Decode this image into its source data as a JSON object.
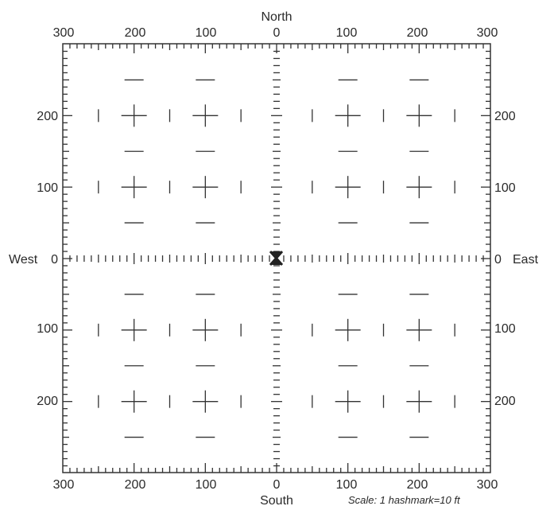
{
  "directions": {
    "north": "North",
    "south": "South",
    "west": "West",
    "east": "East"
  },
  "scale_note": "Scale:  1 hashmark=10 ft",
  "center_marker": "X",
  "top_ticks": [
    "300",
    "200",
    "100",
    "0",
    "100",
    "200",
    "300"
  ],
  "bottom_ticks": [
    "300",
    "200",
    "100",
    "0",
    "100",
    "200",
    "300"
  ],
  "left_ticks": [
    "200",
    "100",
    "0",
    "100",
    "200"
  ],
  "right_ticks": [
    "200",
    "100",
    "0",
    "100",
    "200"
  ],
  "units_per_hashmark": 10,
  "extent": 300,
  "colors": {
    "ink": "#333333",
    "background": "#ffffff"
  }
}
